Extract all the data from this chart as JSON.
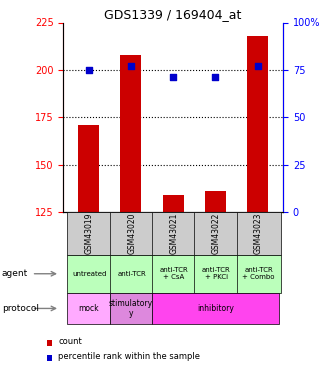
{
  "title": "GDS1339 / 169404_at",
  "samples": [
    "GSM43019",
    "GSM43020",
    "GSM43021",
    "GSM43022",
    "GSM43023"
  ],
  "bar_values": [
    171,
    208,
    134,
    136,
    218
  ],
  "bar_bottom": 125,
  "percentile_values": [
    75,
    77,
    71,
    71,
    77
  ],
  "bar_color": "#cc0000",
  "dot_color": "#0000cc",
  "ylim_left": [
    125,
    225
  ],
  "ylim_right": [
    0,
    100
  ],
  "yticks_left": [
    125,
    150,
    175,
    200,
    225
  ],
  "yticks_right": [
    0,
    25,
    50,
    75,
    100
  ],
  "agent_labels": [
    "untreated",
    "anti-TCR",
    "anti-TCR\n+ CsA",
    "anti-TCR\n+ PKCi",
    "anti-TCR\n+ Combo"
  ],
  "agent_color": "#bbffbb",
  "protocol_info": [
    {
      "start": 0,
      "end": 1,
      "color": "#ffaaff",
      "label": "mock"
    },
    {
      "start": 1,
      "end": 2,
      "color": "#dd88dd",
      "label": "stimulatory\ny"
    },
    {
      "start": 2,
      "end": 5,
      "color": "#ff44ee",
      "label": "inhibitory"
    }
  ],
  "sample_bg_color": "#cccccc",
  "legend_count_color": "#cc0000",
  "legend_dot_color": "#0000cc"
}
